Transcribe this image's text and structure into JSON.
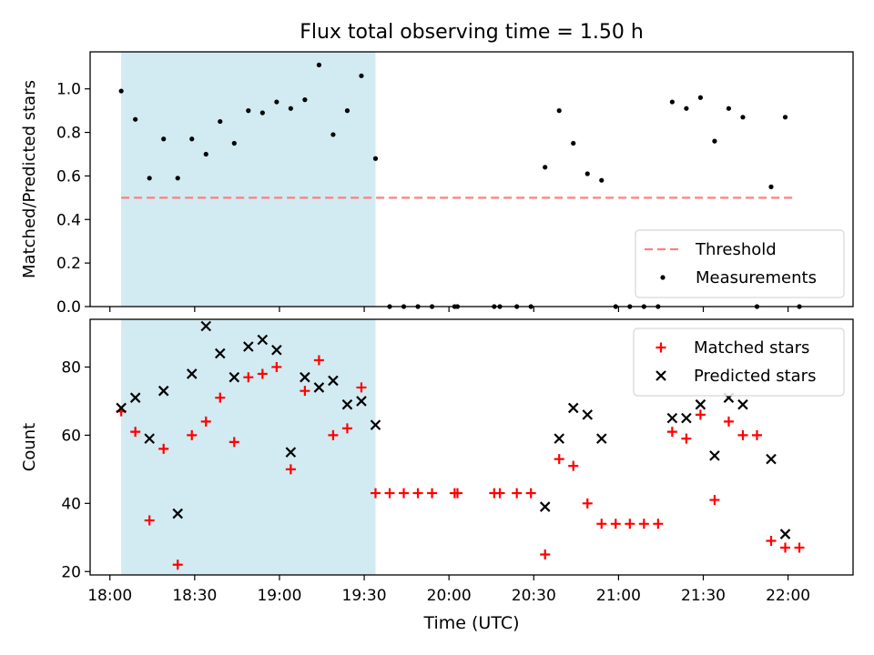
{
  "chart_data": {
    "title": "Flux total observing time = 1.50 h",
    "xlabel": "Time (UTC)",
    "x_unit": "HH:MM",
    "x_range": [
      "17:53",
      "22:23"
    ],
    "x_ticks": [
      "18:00",
      "18:30",
      "19:00",
      "19:30",
      "20:00",
      "20:30",
      "21:00",
      "21:30",
      "22:00"
    ],
    "shaded_interval": {
      "from": "18:04",
      "to": "19:34",
      "color": "#add8e6"
    },
    "panels": [
      {
        "type": "scatter",
        "ylabel": "Matched/Predicted stars",
        "ylim": [
          0,
          1.17
        ],
        "y_ticks": [
          "0.0",
          "0.2",
          "0.4",
          "0.6",
          "0.8",
          "1.0"
        ],
        "legend_position": "lower-right",
        "threshold": {
          "name": "Threshold",
          "value": 0.5,
          "from": "18:04",
          "to": "22:03",
          "color": "#ff7f7f",
          "style": "dashed"
        },
        "series": [
          {
            "name": "Measurements",
            "marker": "dot",
            "color": "#000000",
            "points": [
              [
                "18:04",
                0.99
              ],
              [
                "18:09",
                0.86
              ],
              [
                "18:14",
                0.59
              ],
              [
                "18:19",
                0.77
              ],
              [
                "18:24",
                0.59
              ],
              [
                "18:29",
                0.77
              ],
              [
                "18:34",
                0.7
              ],
              [
                "18:39",
                0.85
              ],
              [
                "18:44",
                0.75
              ],
              [
                "18:49",
                0.9
              ],
              [
                "18:54",
                0.89
              ],
              [
                "18:59",
                0.94
              ],
              [
                "19:04",
                0.91
              ],
              [
                "19:09",
                0.95
              ],
              [
                "19:14",
                1.11
              ],
              [
                "19:19",
                0.79
              ],
              [
                "19:24",
                0.9
              ],
              [
                "19:29",
                1.06
              ],
              [
                "19:34",
                0.68
              ],
              [
                "19:39",
                0
              ],
              [
                "19:44",
                0
              ],
              [
                "19:49",
                0
              ],
              [
                "19:54",
                0
              ],
              [
                "20:02",
                0
              ],
              [
                "20:03",
                0
              ],
              [
                "20:16",
                0
              ],
              [
                "20:18",
                0
              ],
              [
                "20:24",
                0
              ],
              [
                "20:29",
                0
              ],
              [
                "20:34",
                0.64
              ],
              [
                "20:39",
                0.9
              ],
              [
                "20:44",
                0.75
              ],
              [
                "20:49",
                0.61
              ],
              [
                "20:54",
                0.58
              ],
              [
                "20:59",
                0
              ],
              [
                "21:04",
                0
              ],
              [
                "21:09",
                0
              ],
              [
                "21:14",
                0
              ],
              [
                "21:19",
                0.94
              ],
              [
                "21:24",
                0.91
              ],
              [
                "21:29",
                0.96
              ],
              [
                "21:34",
                0.76
              ],
              [
                "21:39",
                0.91
              ],
              [
                "21:44",
                0.87
              ],
              [
                "21:49",
                0
              ],
              [
                "21:54",
                0.55
              ],
              [
                "21:59",
                0.87
              ],
              [
                "22:04",
                0
              ]
            ]
          }
        ]
      },
      {
        "type": "scatter",
        "ylabel": "Count",
        "ylim": [
          19,
          94
        ],
        "y_ticks": [
          "20",
          "40",
          "60",
          "80"
        ],
        "legend_position": "upper-right",
        "series": [
          {
            "name": "Matched stars",
            "marker": "plus",
            "color": "#ff0000",
            "points": [
              [
                "18:04",
                67
              ],
              [
                "18:09",
                61
              ],
              [
                "18:14",
                35
              ],
              [
                "18:19",
                56
              ],
              [
                "18:24",
                22
              ],
              [
                "18:29",
                60
              ],
              [
                "18:34",
                64
              ],
              [
                "18:39",
                71
              ],
              [
                "18:44",
                58
              ],
              [
                "18:49",
                77
              ],
              [
                "18:54",
                78
              ],
              [
                "18:59",
                80
              ],
              [
                "19:04",
                50
              ],
              [
                "19:09",
                73
              ],
              [
                "19:14",
                82
              ],
              [
                "19:19",
                60
              ],
              [
                "19:24",
                62
              ],
              [
                "19:29",
                74
              ],
              [
                "19:34",
                43
              ],
              [
                "19:39",
                43
              ],
              [
                "19:44",
                43
              ],
              [
                "19:49",
                43
              ],
              [
                "19:54",
                43
              ],
              [
                "20:02",
                43
              ],
              [
                "20:03",
                43
              ],
              [
                "20:16",
                43
              ],
              [
                "20:18",
                43
              ],
              [
                "20:24",
                43
              ],
              [
                "20:29",
                43
              ],
              [
                "20:34",
                25
              ],
              [
                "20:39",
                53
              ],
              [
                "20:44",
                51
              ],
              [
                "20:49",
                40
              ],
              [
                "20:54",
                34
              ],
              [
                "20:59",
                34
              ],
              [
                "21:04",
                34
              ],
              [
                "21:09",
                34
              ],
              [
                "21:14",
                34
              ],
              [
                "21:19",
                61
              ],
              [
                "21:24",
                59
              ],
              [
                "21:29",
                66
              ],
              [
                "21:34",
                41
              ],
              [
                "21:39",
                64
              ],
              [
                "21:44",
                60
              ],
              [
                "21:49",
                60
              ],
              [
                "21:54",
                29
              ],
              [
                "21:59",
                27
              ],
              [
                "22:04",
                27
              ]
            ]
          },
          {
            "name": "Predicted stars",
            "marker": "x",
            "color": "#000000",
            "points": [
              [
                "18:04",
                68
              ],
              [
                "18:09",
                71
              ],
              [
                "18:14",
                59
              ],
              [
                "18:19",
                73
              ],
              [
                "18:24",
                37
              ],
              [
                "18:29",
                78
              ],
              [
                "18:34",
                92
              ],
              [
                "18:39",
                84
              ],
              [
                "18:44",
                77
              ],
              [
                "18:49",
                86
              ],
              [
                "18:54",
                88
              ],
              [
                "18:59",
                85
              ],
              [
                "19:04",
                55
              ],
              [
                "19:09",
                77
              ],
              [
                "19:14",
                74
              ],
              [
                "19:19",
                76
              ],
              [
                "19:24",
                69
              ],
              [
                "19:29",
                70
              ],
              [
                "19:34",
                63
              ],
              [
                "20:34",
                39
              ],
              [
                "20:39",
                59
              ],
              [
                "20:44",
                68
              ],
              [
                "20:49",
                66
              ],
              [
                "20:54",
                59
              ],
              [
                "21:19",
                65
              ],
              [
                "21:24",
                65
              ],
              [
                "21:29",
                69
              ],
              [
                "21:34",
                54
              ],
              [
                "21:39",
                71
              ],
              [
                "21:44",
                69
              ],
              [
                "21:54",
                53
              ],
              [
                "21:59",
                31
              ]
            ]
          }
        ]
      }
    ]
  }
}
